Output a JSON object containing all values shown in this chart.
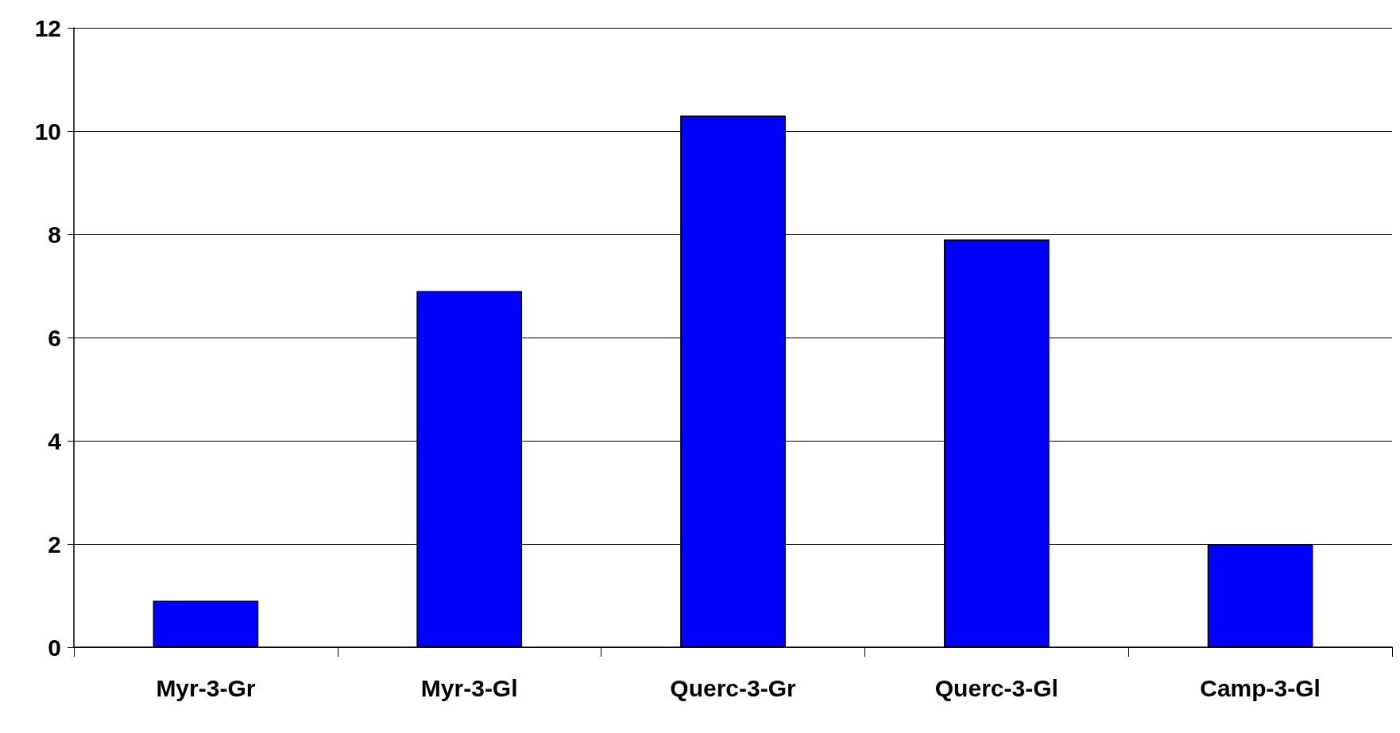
{
  "chart_data": {
    "type": "bar",
    "categories": [
      "Myr-3-Gr",
      "Myr-3-Gl",
      "Querc-3-Gr",
      "Querc-3-Gl",
      "Camp-3-Gl"
    ],
    "values": [
      0.9,
      6.9,
      10.3,
      7.9,
      2.0
    ],
    "color": "#0000ff",
    "ylim": [
      0,
      12
    ],
    "yticks": [
      0,
      2,
      4,
      6,
      8,
      10,
      12
    ],
    "grid": "y"
  }
}
